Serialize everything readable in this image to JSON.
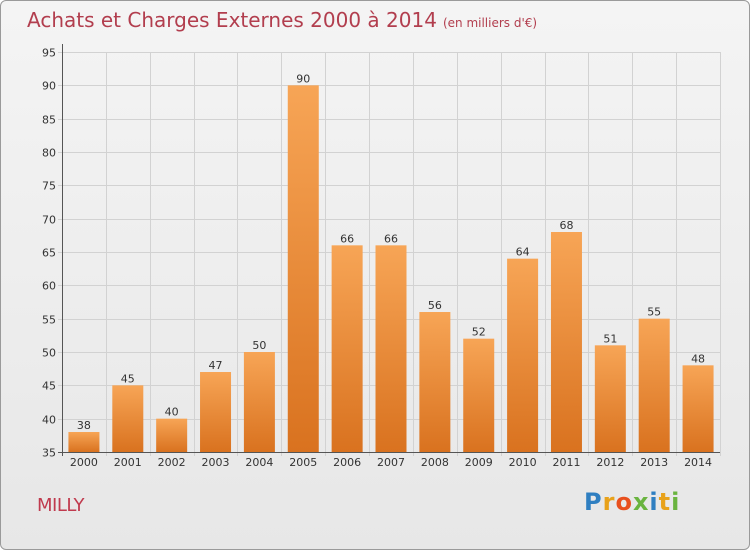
{
  "title": "Achats et Charges Externes 2000 à 2014",
  "subtitle": "(en milliers d'€)",
  "commune": "MILLY",
  "logo": {
    "letters": [
      "P",
      "r",
      "o",
      "x",
      "i",
      "t",
      "i"
    ],
    "colors": [
      "#2f7fc1",
      "#e8a21b",
      "#e8501e",
      "#6ab43f",
      "#2f7fc1",
      "#e8a21b",
      "#6ab43f"
    ]
  },
  "colors": {
    "bar_light": "#f7a556",
    "bar_dark": "#d9721f",
    "title": "#b23e4e"
  },
  "chart_data": {
    "type": "bar",
    "title": "Achats et Charges Externes 2000 à 2014",
    "subtitle": "(en milliers d'€)",
    "xlabel": "",
    "ylabel": "",
    "categories": [
      "2000",
      "2001",
      "2002",
      "2003",
      "2004",
      "2005",
      "2006",
      "2007",
      "2008",
      "2009",
      "2010",
      "2011",
      "2012",
      "2013",
      "2014"
    ],
    "values": [
      38,
      45,
      40,
      47,
      50,
      90,
      66,
      66,
      56,
      52,
      64,
      68,
      51,
      55,
      48
    ],
    "ylim": [
      35,
      95
    ],
    "yticks": [
      35,
      40,
      45,
      50,
      55,
      60,
      65,
      70,
      75,
      80,
      85,
      90,
      95
    ],
    "grid": true
  }
}
